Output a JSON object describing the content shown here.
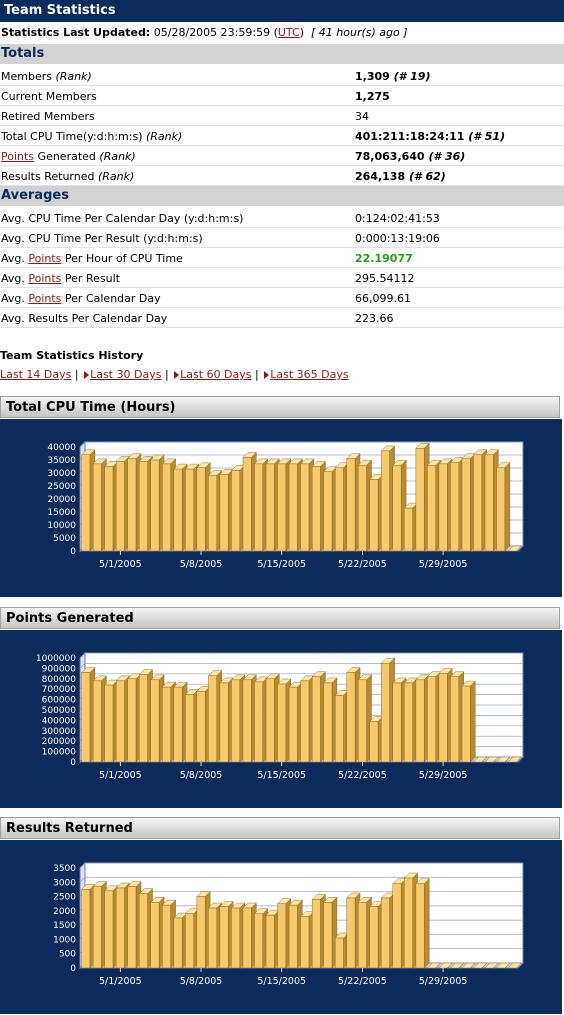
{
  "header": {
    "title": "Team Statistics"
  },
  "updated": {
    "label": "Statistics Last Updated:",
    "datetime": "05/28/2005 23:59:59 (",
    "tz": "UTC",
    "close": ")",
    "ago": "[ 41 hour(s) ago ]"
  },
  "totals": {
    "title": "Totals",
    "rows": [
      {
        "label": "Members ",
        "label_em": "(Rank)",
        "value": "1,309",
        "value_em": "(# 19)"
      },
      {
        "label": "Current Members",
        "label_em": "",
        "value": "1,275",
        "value_em": ""
      },
      {
        "label": "Retired Members",
        "label_em": "",
        "value": "34",
        "value_em": ""
      },
      {
        "label": "Total CPU Time(y:d:h:m:s) ",
        "label_em": "(Rank)",
        "value": "401:211:18:24:11",
        "value_em": "(# 51)"
      },
      {
        "link": "Points",
        "label": " Generated ",
        "label_em": "(Rank)",
        "value": "78,063,640",
        "value_em": "(# 36)"
      },
      {
        "label": "Results Returned ",
        "label_em": "(Rank)",
        "value": "264,138",
        "value_em": "(# 62)"
      }
    ]
  },
  "averages": {
    "title": "Averages",
    "rows": [
      {
        "pre": "Avg. CPU Time Per Calendar Day (y:d:h:m:s)",
        "link": "",
        "post": "",
        "value": "0:124:02:41:53"
      },
      {
        "pre": "Avg. CPU Time Per Result (y:d:h:m:s)",
        "link": "",
        "post": "",
        "value": "0:000:13:19:06"
      },
      {
        "pre": "Avg. ",
        "link": "Points",
        "post": " Per Hour of CPU Time",
        "value": "22.19077"
      },
      {
        "pre": "Avg. ",
        "link": "Points",
        "post": " Per Result",
        "value": "295.54112"
      },
      {
        "pre": "Avg. ",
        "link": "Points",
        "post": " Per Calendar Day",
        "value": "66,099.61"
      },
      {
        "pre": "Avg. Results Per Calendar Day",
        "link": "",
        "post": "",
        "value": "223.66"
      }
    ]
  },
  "history": {
    "title": "Team Statistics History",
    "links": [
      "Last 14 Days",
      "Last 30 Days",
      "Last 60 Days",
      "Last 365 Days"
    ],
    "sep": "|"
  },
  "colors": {
    "bar_face": "#f7c96a",
    "bar_side": "#b98a30",
    "bar_top": "#fde6a8",
    "panel": "#0b2b5c",
    "plot_bg": "#ffffff",
    "grid": "#9aa6c8"
  },
  "chart_data": [
    {
      "type": "bar",
      "title": "Total CPU Time (Hours)",
      "ylim": [
        0,
        40000
      ],
      "yticks": [
        "0",
        "5000",
        "10000",
        "15000",
        "20000",
        "25000",
        "30000",
        "35000",
        "40000"
      ],
      "xtick_labels": [
        "5/1/2005",
        "5/8/2005",
        "5/15/2005",
        "5/22/2005",
        "5/29/2005"
      ],
      "xtick_index": [
        3,
        10,
        17,
        24,
        31
      ],
      "values": [
        37000,
        33500,
        32500,
        34500,
        35500,
        34500,
        35000,
        33500,
        31500,
        31500,
        32000,
        29000,
        29500,
        31000,
        36000,
        33500,
        33500,
        33500,
        33500,
        33500,
        32500,
        30500,
        32000,
        35500,
        33000,
        27500,
        38500,
        33000,
        16500,
        39500,
        33000,
        33500,
        34000,
        35500,
        37000,
        37000,
        32000,
        0
      ]
    },
    {
      "type": "bar",
      "title": "Points Generated",
      "ylim": [
        0,
        1000000
      ],
      "yticks": [
        "0",
        "100000",
        "200000",
        "300000",
        "400000",
        "500000",
        "600000",
        "700000",
        "800000",
        "900000",
        "1000000"
      ],
      "xtick_labels": [
        "5/1/2005",
        "5/8/2005",
        "5/15/2005",
        "5/22/2005",
        "5/29/2005"
      ],
      "xtick_index": [
        3,
        10,
        17,
        24,
        31
      ],
      "values": [
        860000,
        780000,
        740000,
        780000,
        800000,
        840000,
        790000,
        720000,
        720000,
        650000,
        680000,
        830000,
        760000,
        790000,
        790000,
        770000,
        800000,
        750000,
        720000,
        780000,
        820000,
        760000,
        640000,
        860000,
        790000,
        390000,
        950000,
        760000,
        760000,
        790000,
        820000,
        850000,
        820000,
        730000,
        0,
        0,
        0,
        0
      ]
    },
    {
      "type": "bar",
      "title": "Results Returned",
      "ylim": [
        0,
        3500
      ],
      "yticks": [
        "0",
        "500",
        "1000",
        "1500",
        "2000",
        "2500",
        "3000",
        "3500"
      ],
      "xtick_labels": [
        "5/1/2005",
        "5/8/2005",
        "5/15/2005",
        "5/22/2005",
        "5/29/2005"
      ],
      "xtick_index": [
        3,
        10,
        17,
        24,
        31
      ],
      "values": [
        2750,
        2850,
        2700,
        2800,
        2850,
        2600,
        2300,
        2200,
        1750,
        1900,
        2500,
        2100,
        2150,
        2100,
        2100,
        1900,
        1850,
        2250,
        2200,
        1800,
        2400,
        2300,
        1050,
        2450,
        2300,
        2150,
        2450,
        2950,
        3150,
        2950,
        0,
        0,
        0,
        0,
        0,
        0,
        0,
        0
      ]
    }
  ]
}
